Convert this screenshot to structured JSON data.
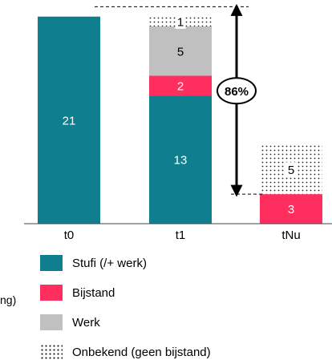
{
  "chart_data": {
    "type": "bar",
    "stacked": true,
    "categories": [
      "t0",
      "t1",
      "tNu"
    ],
    "series": [
      {
        "name": "Stufi (/+ werk)",
        "values": [
          21,
          13,
          0
        ],
        "color": "#0f7f8f"
      },
      {
        "name": "Bijstand",
        "values": [
          0,
          2,
          3
        ],
        "color": "#ff2e5f"
      },
      {
        "name": "Werk",
        "values": [
          0,
          5,
          0
        ],
        "color": "#c0c0c0"
      },
      {
        "name": "Onbekend (geen bijstand)",
        "values": [
          0,
          1,
          5
        ],
        "pattern": "dotted"
      }
    ],
    "bar_labels": [
      {
        "category": "t0",
        "series": "Stufi (/+ werk)",
        "text": "21"
      },
      {
        "category": "t1",
        "series": "Stufi (/+ werk)",
        "text": "13"
      },
      {
        "category": "t1",
        "series": "Bijstand",
        "text": "2"
      },
      {
        "category": "t1",
        "series": "Werk",
        "text": "5"
      },
      {
        "category": "t1",
        "series": "Onbekend (geen bijstand)",
        "text": "1"
      },
      {
        "category": "tNu",
        "series": "Bijstand",
        "text": "3"
      },
      {
        "category": "tNu",
        "series": "Onbekend (geen bijstand)",
        "text": "5"
      }
    ],
    "annotation": {
      "text": "86%",
      "from_value": 22,
      "to_value": 3
    },
    "ylim": [
      0,
      22
    ],
    "grid": false,
    "legend_position": "bottom-left"
  },
  "stray_text": "ng)"
}
